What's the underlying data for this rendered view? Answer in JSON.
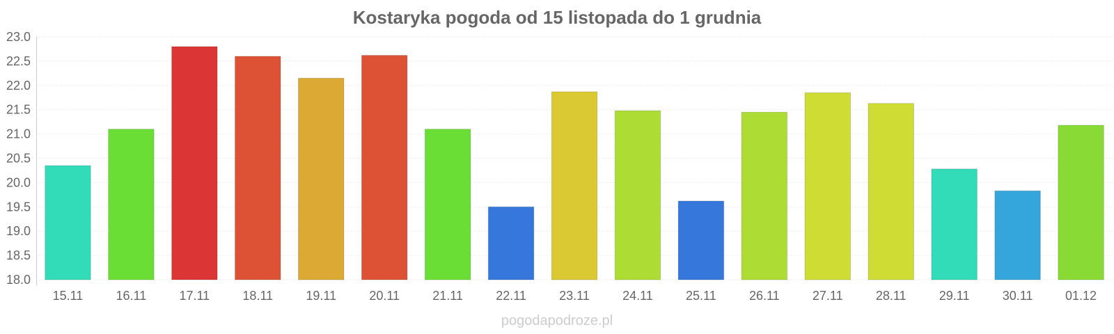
{
  "chart_data": {
    "type": "bar",
    "title": "Kostaryka pogoda od 15 listopada do 1 grudnia",
    "xlabel": "",
    "ylabel": "",
    "categories": [
      "15.11",
      "16.11",
      "17.11",
      "18.11",
      "19.11",
      "20.11",
      "21.11",
      "22.11",
      "23.11",
      "24.11",
      "25.11",
      "26.11",
      "27.11",
      "28.11",
      "29.11",
      "30.11",
      "01.12"
    ],
    "values": [
      20.35,
      21.1,
      22.8,
      22.6,
      22.15,
      22.62,
      21.1,
      19.5,
      21.87,
      21.48,
      19.62,
      21.45,
      21.85,
      21.63,
      20.28,
      19.83,
      21.18
    ],
    "colors": [
      "#33dcb8",
      "#6ade35",
      "#db3535",
      "#dd5234",
      "#dba934",
      "#dd5234",
      "#6ade35",
      "#3577db",
      "#dbc934",
      "#addc34",
      "#3577db",
      "#addc34",
      "#cedc34",
      "#cedc34",
      "#33dcb8",
      "#34a6db",
      "#89da34"
    ],
    "ylim": [
      18.0,
      23.0
    ],
    "yticks": [
      "18.0",
      "18.5",
      "19.0",
      "19.5",
      "20.0",
      "20.5",
      "21.0",
      "21.5",
      "22.0",
      "22.5",
      "23.0"
    ],
    "grid": true,
    "legend": "none"
  },
  "watermark": "pogodapodroze.pl"
}
